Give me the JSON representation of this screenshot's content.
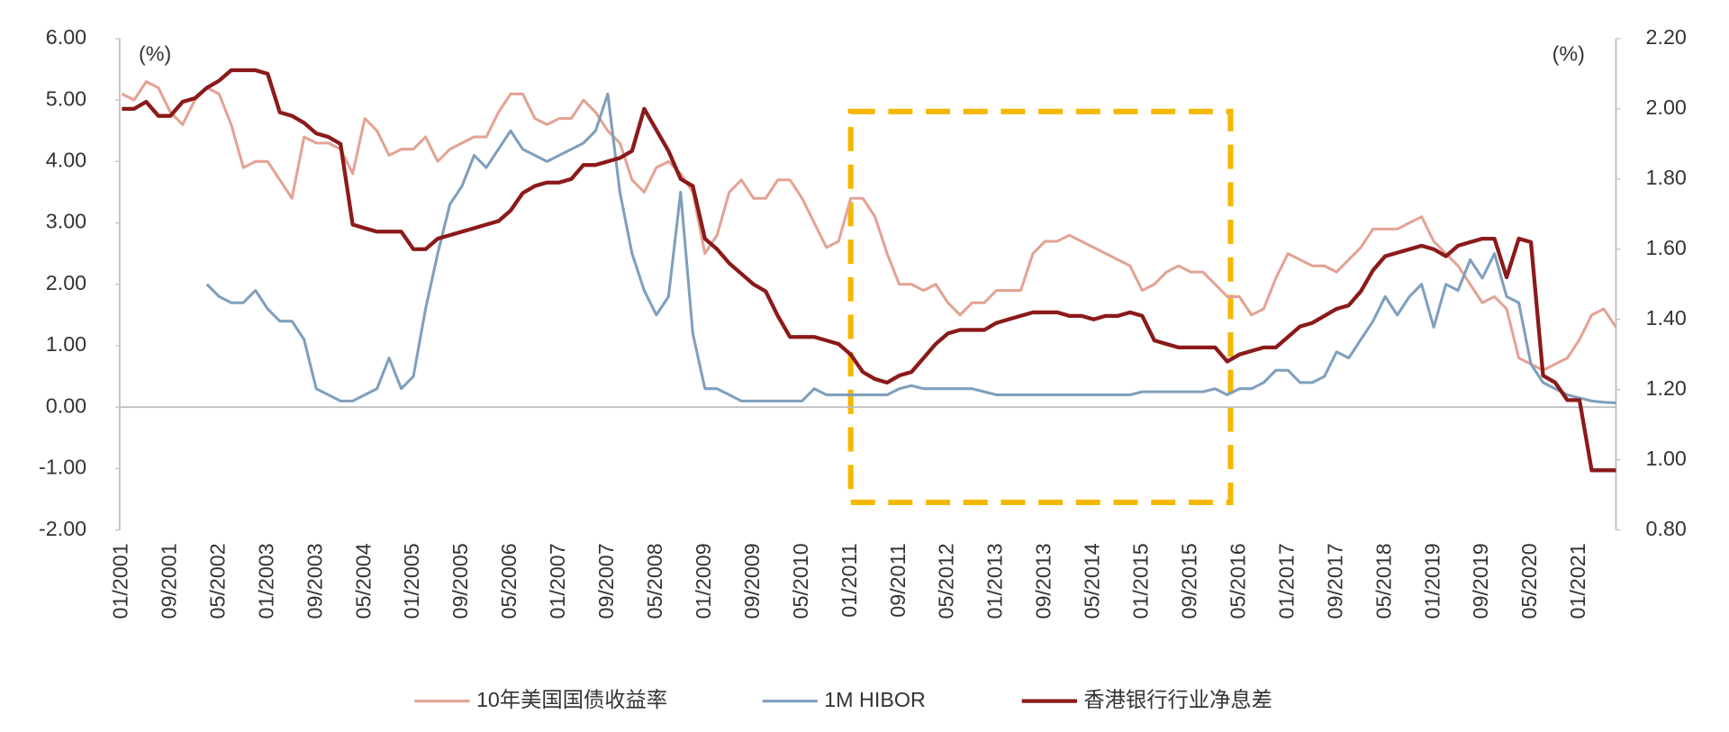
{
  "chart_data": {
    "type": "line",
    "y_unit": "(%)",
    "y2_unit": "(%)",
    "categories": [
      "01/2001",
      null,
      null,
      null,
      "09/2001",
      null,
      null,
      null,
      "05/2002",
      null,
      null,
      null,
      "01/2003",
      null,
      null,
      null,
      "09/2003",
      null,
      null,
      null,
      "05/2004",
      null,
      null,
      null,
      "01/2005",
      null,
      null,
      null,
      "09/2005",
      null,
      null,
      null,
      "05/2006",
      null,
      null,
      null,
      "01/2007",
      null,
      null,
      null,
      "09/2007",
      null,
      null,
      null,
      "05/2008",
      null,
      null,
      null,
      "01/2009",
      null,
      null,
      null,
      "09/2009",
      null,
      null,
      null,
      "05/2010",
      null,
      null,
      null,
      "01/2011",
      null,
      null,
      null,
      "09/2011",
      null,
      null,
      null,
      "05/2012",
      null,
      null,
      null,
      "01/2013",
      null,
      null,
      null,
      "09/2013",
      null,
      null,
      null,
      "05/2014",
      null,
      null,
      null,
      "01/2015",
      null,
      null,
      null,
      "09/2015",
      null,
      null,
      null,
      "05/2016",
      null,
      null,
      null,
      "01/2017",
      null,
      null,
      null,
      "09/2017",
      null,
      null,
      null,
      "05/2018",
      null,
      null,
      null,
      "01/2019",
      null,
      null,
      null,
      "09/2019",
      null,
      null,
      null,
      "05/2020",
      null,
      null,
      null,
      "01/2021",
      null,
      null,
      null
    ],
    "series": [
      {
        "name": "10年美国国债收益率",
        "color": "#e3a394",
        "values": [
          5.1,
          5.0,
          5.3,
          5.2,
          4.8,
          4.6,
          5.0,
          5.2,
          5.1,
          4.6,
          3.9,
          4.0,
          4.0,
          3.7,
          3.4,
          4.4,
          4.3,
          4.3,
          4.2,
          3.8,
          4.7,
          4.5,
          4.1,
          4.2,
          4.2,
          4.4,
          4.0,
          4.2,
          4.3,
          4.4,
          4.4,
          4.8,
          5.1,
          5.1,
          4.7,
          4.6,
          4.7,
          4.7,
          5.0,
          4.8,
          4.5,
          4.3,
          3.7,
          3.5,
          3.9,
          4.0,
          3.8,
          3.5,
          2.5,
          2.8,
          3.5,
          3.7,
          3.4,
          3.4,
          3.7,
          3.7,
          3.4,
          3.0,
          2.6,
          2.7,
          3.4,
          3.4,
          3.1,
          2.5,
          2.0,
          2.0,
          1.9,
          2.0,
          1.7,
          1.5,
          1.7,
          1.7,
          1.9,
          1.9,
          1.9,
          2.5,
          2.7,
          2.7,
          2.8,
          2.7,
          2.6,
          2.5,
          2.4,
          2.3,
          1.9,
          2.0,
          2.2,
          2.3,
          2.2,
          2.2,
          2.0,
          1.8,
          1.8,
          1.5,
          1.6,
          2.1,
          2.5,
          2.4,
          2.3,
          2.3,
          2.2,
          2.4,
          2.6,
          2.9,
          2.9,
          2.9,
          3.0,
          3.1,
          2.7,
          2.5,
          2.3,
          2.0,
          1.7,
          1.8,
          1.6,
          0.8,
          0.7,
          0.6,
          0.7,
          0.8,
          1.1,
          1.5,
          1.6,
          1.3
        ]
      },
      {
        "name": "1M HIBOR",
        "color": "#7f9fbd",
        "values": [
          null,
          null,
          null,
          null,
          null,
          null,
          null,
          2.0,
          1.8,
          1.7,
          1.7,
          1.9,
          1.6,
          1.4,
          1.4,
          1.1,
          0.3,
          0.2,
          0.1,
          0.1,
          0.2,
          0.3,
          0.8,
          0.3,
          0.5,
          1.6,
          2.5,
          3.3,
          3.6,
          4.1,
          3.9,
          4.2,
          4.5,
          4.2,
          4.1,
          4.0,
          4.1,
          4.2,
          4.3,
          4.5,
          5.1,
          3.5,
          2.5,
          1.9,
          1.5,
          1.8,
          3.5,
          1.2,
          0.3,
          0.3,
          0.2,
          0.1,
          0.1,
          0.1,
          0.1,
          0.1,
          0.1,
          0.3,
          0.2,
          0.2,
          0.2,
          0.2,
          0.2,
          0.2,
          0.3,
          0.35,
          0.3,
          0.3,
          0.3,
          0.3,
          0.3,
          0.25,
          0.2,
          0.2,
          0.2,
          0.2,
          0.2,
          0.2,
          0.2,
          0.2,
          0.2,
          0.2,
          0.2,
          0.2,
          0.25,
          0.25,
          0.25,
          0.25,
          0.25,
          0.25,
          0.3,
          0.2,
          0.3,
          0.3,
          0.4,
          0.6,
          0.6,
          0.4,
          0.4,
          0.5,
          0.9,
          0.8,
          1.1,
          1.4,
          1.8,
          1.5,
          1.8,
          2.0,
          1.3,
          2.0,
          1.9,
          2.4,
          2.1,
          2.5,
          1.8,
          1.7,
          0.7,
          0.4,
          0.3,
          0.2,
          0.15,
          0.1,
          0.08,
          0.07
        ]
      },
      {
        "name": "香港银行行业净息差",
        "color": "#8b1a1a",
        "axis": "y2",
        "values": [
          2.0,
          2.0,
          2.02,
          1.98,
          1.98,
          2.02,
          2.03,
          2.06,
          2.08,
          2.11,
          2.11,
          2.11,
          2.1,
          1.99,
          1.98,
          1.96,
          1.93,
          1.92,
          1.9,
          1.67,
          1.66,
          1.65,
          1.65,
          1.65,
          1.6,
          1.6,
          1.63,
          1.64,
          1.65,
          1.66,
          1.67,
          1.68,
          1.71,
          1.76,
          1.78,
          1.79,
          1.79,
          1.8,
          1.84,
          1.84,
          1.85,
          1.86,
          1.88,
          2.0,
          1.94,
          1.88,
          1.8,
          1.78,
          1.63,
          1.6,
          1.56,
          1.53,
          1.5,
          1.48,
          1.41,
          1.35,
          1.35,
          1.35,
          1.34,
          1.33,
          1.3,
          1.25,
          1.23,
          1.22,
          1.24,
          1.25,
          1.29,
          1.33,
          1.36,
          1.37,
          1.37,
          1.37,
          1.39,
          1.4,
          1.41,
          1.42,
          1.42,
          1.42,
          1.41,
          1.41,
          1.4,
          1.41,
          1.41,
          1.42,
          1.41,
          1.34,
          1.33,
          1.32,
          1.32,
          1.32,
          1.32,
          1.28,
          1.3,
          1.31,
          1.32,
          1.32,
          1.35,
          1.38,
          1.39,
          1.41,
          1.43,
          1.44,
          1.48,
          1.54,
          1.58,
          1.59,
          1.6,
          1.61,
          1.6,
          1.58,
          1.61,
          1.62,
          1.63,
          1.63,
          1.52,
          1.63,
          1.62,
          1.24,
          1.22,
          1.17,
          1.17,
          0.97,
          0.97,
          0.97
        ]
      }
    ],
    "ylim": [
      -2,
      6
    ],
    "yticks": [
      {
        "value": 6,
        "label": "6.00"
      },
      {
        "value": 5,
        "label": "5.00"
      },
      {
        "value": 4,
        "label": "4.00"
      },
      {
        "value": 3,
        "label": "3.00"
      },
      {
        "value": 2,
        "label": "2.00"
      },
      {
        "value": 1,
        "label": "1.00"
      },
      {
        "value": 0,
        "label": "0.00"
      },
      {
        "value": -1,
        "label": "-1.00"
      },
      {
        "value": -2,
        "label": "-2.00"
      }
    ],
    "y2lim": [
      0.8,
      2.2
    ],
    "y2ticks": [
      {
        "value": 2.2,
        "label": "2.20"
      },
      {
        "value": 2.0,
        "label": "2.00"
      },
      {
        "value": 1.8,
        "label": "1.80"
      },
      {
        "value": 1.6,
        "label": "1.60"
      },
      {
        "value": 1.4,
        "label": "1.40"
      },
      {
        "value": 1.2,
        "label": "1.20"
      },
      {
        "value": 1.0,
        "label": "1.00"
      },
      {
        "value": 0.8,
        "label": "0.80"
      }
    ],
    "grid": false,
    "legend": "bottom"
  }
}
